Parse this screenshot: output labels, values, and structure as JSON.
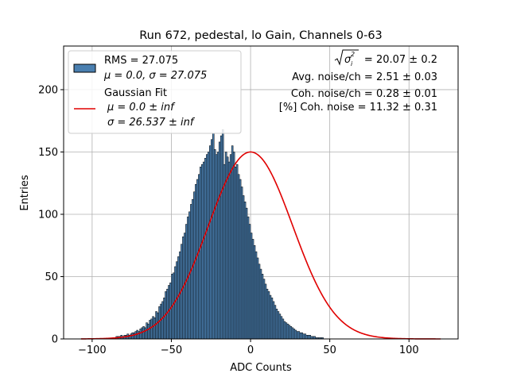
{
  "chart_data": {
    "type": "bar",
    "title": "Run 672, pedestal, lo Gain, Channels 0-63",
    "xlabel": "ADC Counts",
    "ylabel": "Entries",
    "xlim": [
      -118,
      131
    ],
    "ylim": [
      0,
      235
    ],
    "xticks": [
      -100,
      -50,
      0,
      50,
      100
    ],
    "yticks": [
      0,
      50,
      100,
      150,
      200
    ],
    "grid": true,
    "legend_position": "top-left",
    "legend": {
      "hist_line1": "RMS = 27.075",
      "hist_line2": "μ = 0.0, σ = 27.075",
      "fit_line1": "Gaussian Fit",
      "fit_line2": "μ = 0.0 ± inf",
      "fit_line3": "σ = 26.537 ± inf"
    },
    "annotations": {
      "line1_value": "= 20.07 ± 0.2",
      "line2": "Avg. noise/ch = 2.51 ± 0.03",
      "line3": "Coh. noise/ch = 0.28 ± 0.01",
      "line4": "[%] Coh. noise = 11.32 ± 0.31"
    },
    "histogram": {
      "bin_start": -107,
      "bin_width": 1,
      "values": [
        0,
        0,
        0,
        0,
        0,
        0,
        0,
        0,
        0,
        0,
        0,
        0,
        0,
        0,
        0,
        0,
        0,
        0,
        0,
        0,
        1,
        1,
        2,
        2,
        2,
        3,
        2,
        3,
        3,
        4,
        3,
        4,
        5,
        5,
        6,
        7,
        6,
        8,
        9,
        10,
        9,
        13,
        12,
        15,
        16,
        18,
        17,
        22,
        21,
        26,
        28,
        30,
        33,
        38,
        40,
        43,
        45,
        52,
        53,
        58,
        62,
        66,
        70,
        76,
        82,
        85,
        92,
        98,
        102,
        108,
        112,
        118,
        124,
        128,
        132,
        138,
        140,
        142,
        145,
        148,
        150,
        155,
        160,
        165,
        152,
        148,
        150,
        158,
        163,
        168,
        140,
        150,
        146,
        142,
        148,
        155,
        150,
        138,
        140,
        132,
        128,
        122,
        115,
        110,
        105,
        98,
        92,
        85,
        80,
        75,
        70,
        65,
        60,
        56,
        52,
        48,
        44,
        40,
        38,
        35,
        33,
        30,
        27,
        24,
        22,
        20,
        18,
        16,
        14,
        13,
        12,
        11,
        10,
        9,
        8,
        7,
        6,
        6,
        5,
        5,
        4,
        4,
        3,
        3,
        3,
        2,
        2,
        2,
        1,
        1,
        1,
        1,
        1,
        0,
        0,
        0,
        0,
        0,
        0,
        0,
        0,
        0,
        0,
        0,
        0,
        0,
        0,
        0,
        0,
        0,
        0,
        0,
        0,
        0,
        0,
        0,
        0,
        0,
        0,
        0,
        0,
        0,
        0,
        0,
        0,
        0,
        0,
        0,
        0,
        0,
        0,
        0,
        0,
        0,
        0,
        0,
        0,
        0,
        0,
        0,
        0,
        0,
        0,
        0,
        0,
        0,
        0,
        0,
        0,
        0,
        0,
        0,
        0,
        0,
        0,
        0,
        0,
        0,
        0,
        0,
        0,
        0,
        0,
        0,
        0,
        0,
        0,
        0
      ]
    },
    "fit": {
      "mu": 0.0,
      "sigma": 26.537,
      "amplitude": 150,
      "x_range": [
        -107,
        120
      ]
    },
    "colors": {
      "bar_fill": "#4a7fb0",
      "bar_edge": "#000000",
      "fit_line": "#e00000",
      "grid": "#b0b0b0"
    }
  }
}
